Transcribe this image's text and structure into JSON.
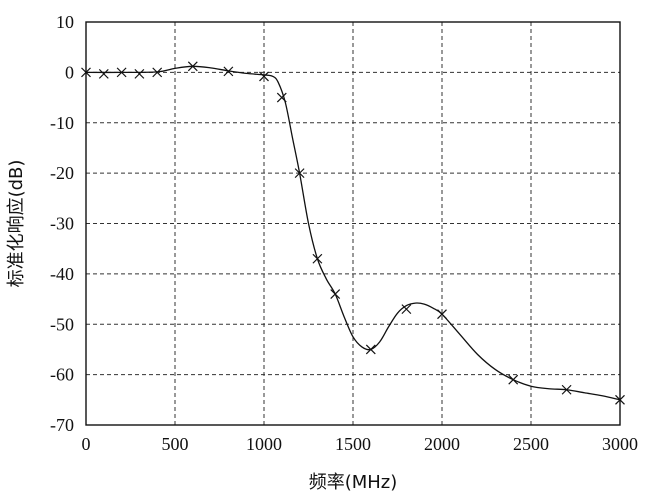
{
  "chart_data": {
    "type": "line",
    "title": "",
    "xlabel": "频率(MHz)",
    "ylabel": "标准化响应(dB)",
    "xlim": [
      0,
      3000
    ],
    "ylim": [
      -70,
      10
    ],
    "xticks": [
      0,
      500,
      1000,
      1500,
      2000,
      2500,
      3000
    ],
    "yticks": [
      10,
      0,
      -10,
      -20,
      -30,
      -40,
      -50,
      -60,
      -70
    ],
    "xtick_labels": [
      "0",
      "500",
      "1000",
      "1500",
      "2000",
      "2500",
      "3000"
    ],
    "ytick_labels": [
      "10",
      "0",
      "-10",
      "-20",
      "-30",
      "-40",
      "-50",
      "-60",
      "-70"
    ],
    "grid": true,
    "series": [
      {
        "marker": "x",
        "x": [
          0,
          100,
          200,
          300,
          400,
          600,
          800,
          1000,
          1100,
          1200,
          1300,
          1400,
          1600,
          1800,
          2000,
          2400,
          2700,
          3000
        ],
        "y": [
          0,
          -0.3,
          0,
          -0.3,
          0,
          1.2,
          0.2,
          -0.8,
          -5,
          -20,
          -37,
          -44,
          -55,
          -47,
          -48,
          -61,
          -63,
          -65
        ]
      }
    ],
    "curve": {
      "x": [
        0,
        200,
        400,
        500,
        600,
        700,
        800,
        900,
        1000,
        1050,
        1080,
        1120,
        1160,
        1200,
        1250,
        1300,
        1350,
        1400,
        1450,
        1500,
        1550,
        1600,
        1650,
        1700,
        1750,
        1800,
        1850,
        1900,
        1950,
        2000,
        2100,
        2200,
        2300,
        2400,
        2500,
        2600,
        2700,
        2800,
        2900,
        3000
      ],
      "y": [
        0,
        0,
        0.1,
        0.8,
        1.2,
        0.9,
        0.3,
        -0.2,
        -0.5,
        -0.8,
        -2,
        -6,
        -13,
        -20,
        -30,
        -37,
        -41,
        -44,
        -48.5,
        -52.5,
        -54.5,
        -55,
        -53.5,
        -50.5,
        -47.8,
        -46.3,
        -45.8,
        -46,
        -46.8,
        -48,
        -52,
        -56,
        -59,
        -61,
        -62.3,
        -62.8,
        -63,
        -63.6,
        -64.2,
        -65
      ]
    }
  }
}
